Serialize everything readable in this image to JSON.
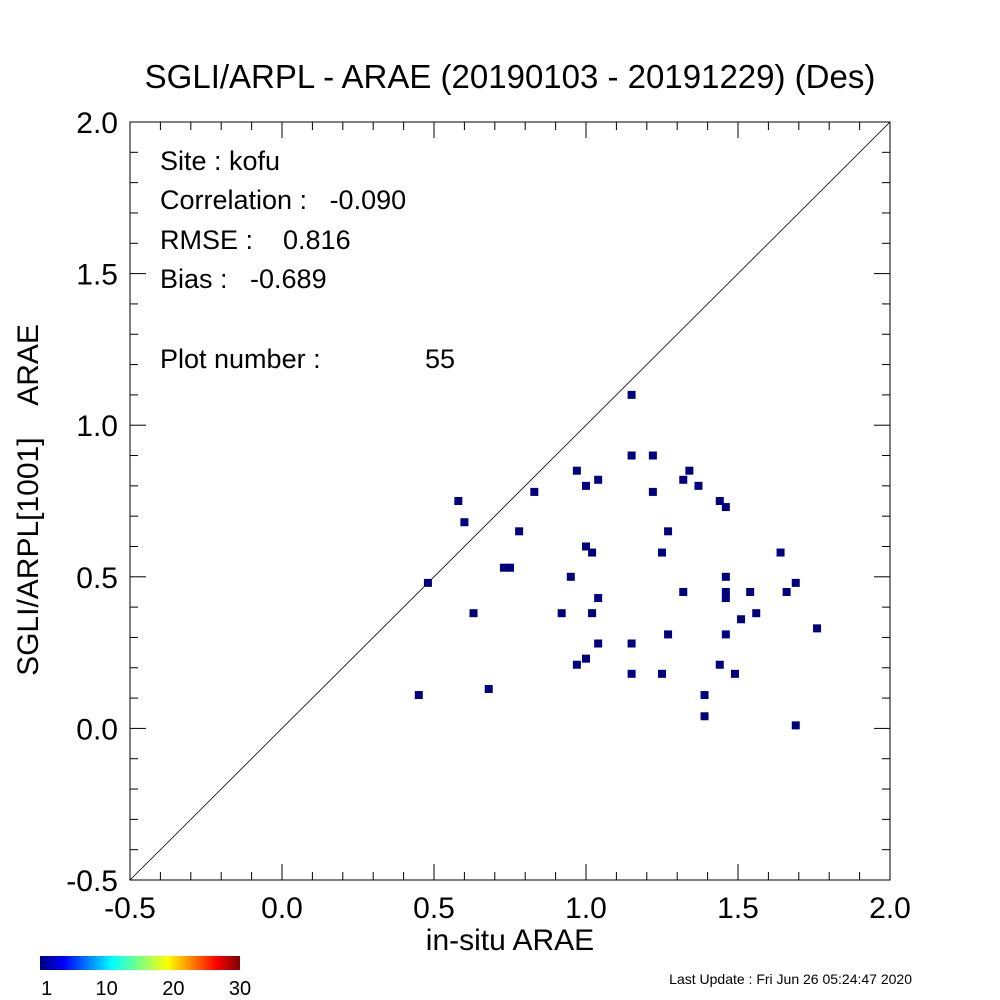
{
  "chart_data": {
    "type": "scatter",
    "title": "SGLI/ARPL - ARAE (20190103 - 20191229) (Des)",
    "xlabel": "in-situ ARAE",
    "ylabel": "SGLI/ARPL[1001]    ARAE",
    "xlim": [
      -0.5,
      2.0
    ],
    "ylim": [
      -0.5,
      2.0
    ],
    "x_ticks": [
      "-0.5",
      "0.0",
      "0.5",
      "1.0",
      "1.5",
      "2.0"
    ],
    "y_ticks": [
      "-0.5",
      "0.0",
      "0.5",
      "1.0",
      "1.5",
      "2.0"
    ],
    "reference_line": "1:1",
    "point_color": "#00007f",
    "stats": {
      "site": "Site : kofu",
      "correlation": "Correlation :   -0.090",
      "rmse": "RMSE :    0.816",
      "bias": "Bias :   -0.689",
      "plot_number_label": "Plot number :",
      "plot_number_value": "55"
    },
    "points": [
      {
        "x": 0.45,
        "y": 0.11
      },
      {
        "x": 0.48,
        "y": 0.48
      },
      {
        "x": 0.58,
        "y": 0.75
      },
      {
        "x": 0.6,
        "y": 0.68
      },
      {
        "x": 0.63,
        "y": 0.38
      },
      {
        "x": 0.68,
        "y": 0.13
      },
      {
        "x": 0.73,
        "y": 0.53
      },
      {
        "x": 0.75,
        "y": 0.53
      },
      {
        "x": 0.78,
        "y": 0.65
      },
      {
        "x": 0.83,
        "y": 0.78
      },
      {
        "x": 0.92,
        "y": 0.38
      },
      {
        "x": 0.95,
        "y": 0.5
      },
      {
        "x": 0.97,
        "y": 0.85
      },
      {
        "x": 0.97,
        "y": 0.21
      },
      {
        "x": 1.0,
        "y": 0.8
      },
      {
        "x": 1.0,
        "y": 0.6
      },
      {
        "x": 1.0,
        "y": 0.23
      },
      {
        "x": 1.02,
        "y": 0.58
      },
      {
        "x": 1.02,
        "y": 0.38
      },
      {
        "x": 1.04,
        "y": 0.82
      },
      {
        "x": 1.04,
        "y": 0.43
      },
      {
        "x": 1.04,
        "y": 0.28
      },
      {
        "x": 1.15,
        "y": 1.1
      },
      {
        "x": 1.15,
        "y": 0.9
      },
      {
        "x": 1.15,
        "y": 0.28
      },
      {
        "x": 1.15,
        "y": 0.18
      },
      {
        "x": 1.22,
        "y": 0.9
      },
      {
        "x": 1.22,
        "y": 0.78
      },
      {
        "x": 1.25,
        "y": 0.58
      },
      {
        "x": 1.25,
        "y": 0.18
      },
      {
        "x": 1.27,
        "y": 0.65
      },
      {
        "x": 1.27,
        "y": 0.31
      },
      {
        "x": 1.32,
        "y": 0.82
      },
      {
        "x": 1.32,
        "y": 0.45
      },
      {
        "x": 1.34,
        "y": 0.85
      },
      {
        "x": 1.37,
        "y": 0.8
      },
      {
        "x": 1.39,
        "y": 0.11
      },
      {
        "x": 1.39,
        "y": 0.04
      },
      {
        "x": 1.44,
        "y": 0.75
      },
      {
        "x": 1.44,
        "y": 0.21
      },
      {
        "x": 1.46,
        "y": 0.73
      },
      {
        "x": 1.46,
        "y": 0.5
      },
      {
        "x": 1.46,
        "y": 0.45
      },
      {
        "x": 1.46,
        "y": 0.43
      },
      {
        "x": 1.46,
        "y": 0.31
      },
      {
        "x": 1.49,
        "y": 0.18
      },
      {
        "x": 1.51,
        "y": 0.36
      },
      {
        "x": 1.54,
        "y": 0.45
      },
      {
        "x": 1.56,
        "y": 0.38
      },
      {
        "x": 1.64,
        "y": 0.58
      },
      {
        "x": 1.66,
        "y": 0.45
      },
      {
        "x": 1.69,
        "y": 0.48
      },
      {
        "x": 1.69,
        "y": 0.01
      },
      {
        "x": 1.76,
        "y": 0.33
      }
    ],
    "colorbar": {
      "ticks": [
        "1",
        "10",
        "20",
        "30"
      ]
    }
  },
  "footer": {
    "last_update": "Last Update : Fri Jun 26 05:24:47 2020"
  }
}
